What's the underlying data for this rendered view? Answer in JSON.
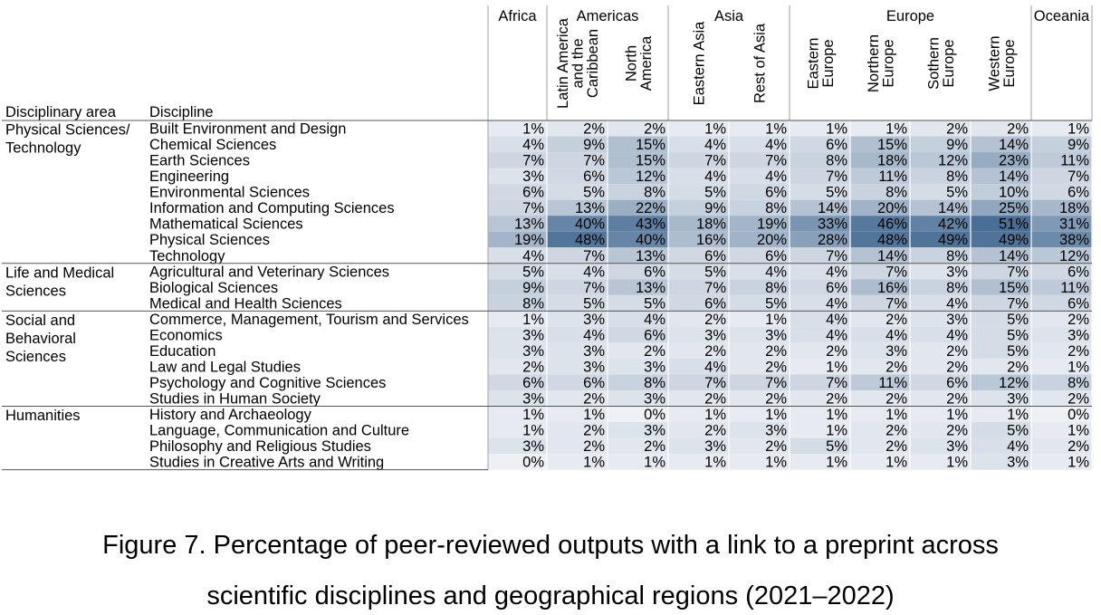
{
  "chart_data": {
    "type": "heatmap",
    "value_suffix": "%",
    "header": {
      "col_area": "Disciplinary area",
      "col_discipline": "Discipline"
    },
    "region_groups": [
      {
        "name": "Africa",
        "subregions": [
          ""
        ]
      },
      {
        "name": "Americas",
        "subregions": [
          "Latin America and the Caribbean",
          "North America"
        ]
      },
      {
        "name": "Asia",
        "subregions": [
          "Eastern Asia",
          "Rest of Asia"
        ]
      },
      {
        "name": "Europe",
        "subregions": [
          "Eastern Europe",
          "Northern Europe",
          "Sothern Europe",
          "Western Europe"
        ]
      },
      {
        "name": "Oceania",
        "subregions": [
          ""
        ]
      }
    ],
    "subregion_label_lines": [
      [],
      [
        "Latin America",
        "and the",
        "Caribbean"
      ],
      [
        "North",
        "America"
      ],
      [
        "Eastern Asia"
      ],
      [
        "Rest of Asia"
      ],
      [
        "Eastern",
        "Europe"
      ],
      [
        "Northern",
        "Europe"
      ],
      [
        "Sothern",
        "Europe"
      ],
      [
        "Western",
        "Europe"
      ],
      []
    ],
    "areas": [
      {
        "name": "Physical Sciences/ Technology",
        "label_lines": [
          "Physical Sciences/",
          "Technology"
        ],
        "rows": [
          {
            "discipline": "Built Environment and Design",
            "values": [
              1,
              2,
              2,
              1,
              1,
              1,
              1,
              2,
              2,
              1
            ]
          },
          {
            "discipline": "Chemical Sciences",
            "values": [
              4,
              9,
              15,
              4,
              4,
              6,
              15,
              9,
              14,
              9
            ]
          },
          {
            "discipline": "Earth Sciences",
            "values": [
              7,
              7,
              15,
              7,
              7,
              8,
              18,
              12,
              23,
              11
            ]
          },
          {
            "discipline": "Engineering",
            "values": [
              3,
              6,
              12,
              4,
              4,
              7,
              11,
              8,
              14,
              7
            ]
          },
          {
            "discipline": "Environmental Sciences",
            "values": [
              6,
              5,
              8,
              5,
              6,
              5,
              8,
              5,
              10,
              6
            ]
          },
          {
            "discipline": "Information and Computing Sciences",
            "values": [
              7,
              13,
              22,
              9,
              8,
              14,
              20,
              14,
              25,
              18
            ]
          },
          {
            "discipline": "Mathematical Sciences",
            "values": [
              13,
              40,
              43,
              18,
              19,
              33,
              46,
              42,
              51,
              31
            ]
          },
          {
            "discipline": "Physical Sciences",
            "values": [
              19,
              48,
              40,
              16,
              20,
              28,
              48,
              49,
              49,
              38
            ]
          },
          {
            "discipline": "Technology",
            "values": [
              4,
              7,
              13,
              6,
              6,
              7,
              14,
              8,
              14,
              12
            ]
          }
        ]
      },
      {
        "name": "Life and Medical Sciences",
        "label_lines": [
          "Life and Medical",
          "Sciences"
        ],
        "rows": [
          {
            "discipline": "Agricultural and Veterinary Sciences",
            "values": [
              5,
              4,
              6,
              5,
              4,
              4,
              7,
              3,
              7,
              6
            ]
          },
          {
            "discipline": "Biological Sciences",
            "values": [
              9,
              7,
              13,
              7,
              8,
              6,
              16,
              8,
              15,
              11
            ]
          },
          {
            "discipline": "Medical and Health Sciences",
            "values": [
              8,
              5,
              5,
              6,
              5,
              4,
              7,
              4,
              7,
              6
            ]
          }
        ]
      },
      {
        "name": "Social and Behavioral Sciences",
        "label_lines": [
          "Social and",
          "Behavioral",
          "Sciences"
        ],
        "rows": [
          {
            "discipline": "Commerce, Management, Tourism and Services",
            "values": [
              1,
              3,
              4,
              2,
              1,
              4,
              2,
              3,
              5,
              2
            ]
          },
          {
            "discipline": "Economics",
            "values": [
              3,
              4,
              6,
              3,
              3,
              4,
              4,
              4,
              5,
              3
            ]
          },
          {
            "discipline": "Education",
            "values": [
              3,
              3,
              2,
              2,
              2,
              2,
              3,
              2,
              5,
              2
            ]
          },
          {
            "discipline": "Law and Legal Studies",
            "values": [
              2,
              3,
              3,
              4,
              2,
              1,
              2,
              2,
              2,
              1
            ]
          },
          {
            "discipline": "Psychology and Cognitive Sciences",
            "values": [
              6,
              6,
              8,
              7,
              7,
              7,
              11,
              6,
              12,
              8
            ]
          },
          {
            "discipline": "Studies in Human Society",
            "values": [
              3,
              2,
              3,
              2,
              2,
              2,
              2,
              2,
              3,
              2
            ]
          }
        ]
      },
      {
        "name": "Humanities",
        "label_lines": [
          "Humanities"
        ],
        "rows": [
          {
            "discipline": "History and Archaeology",
            "values": [
              1,
              1,
              0,
              1,
              1,
              1,
              1,
              1,
              1,
              0
            ]
          },
          {
            "discipline": "Language, Communication and Culture",
            "values": [
              1,
              2,
              3,
              2,
              3,
              1,
              2,
              2,
              5,
              1
            ]
          },
          {
            "discipline": "Philosophy and Religious Studies",
            "values": [
              3,
              2,
              2,
              3,
              2,
              5,
              2,
              3,
              4,
              2
            ]
          },
          {
            "discipline": "Studies in Creative Arts and Writing",
            "values": [
              0,
              1,
              1,
              1,
              1,
              1,
              1,
              1,
              3,
              1
            ]
          }
        ]
      }
    ],
    "color_scale": {
      "min": 0,
      "max": 51,
      "low": "#eef0f4",
      "high": "#4a6f96"
    },
    "grid": false,
    "legend": "none"
  },
  "caption": {
    "line1": "Figure 7. Percentage of peer-reviewed outputs with a link to a preprint across",
    "line2": "scientific disciplines and geographical regions (2021–2022)"
  }
}
